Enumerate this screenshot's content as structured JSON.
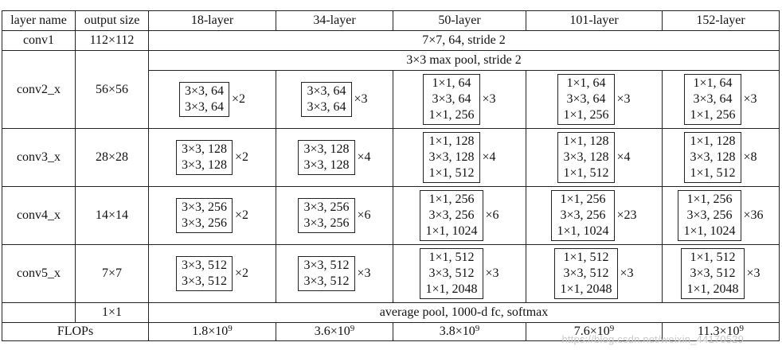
{
  "header": {
    "layer_name": "layer name",
    "output_size": "output size",
    "col18": "18-layer",
    "col34": "34-layer",
    "col50": "50-layer",
    "col101": "101-layer",
    "col152": "152-layer"
  },
  "conv1": {
    "name": "conv1",
    "size": "112×112",
    "desc": "7×7, 64, stride 2"
  },
  "pool": {
    "desc": "3×3 max pool, stride 2"
  },
  "conv2": {
    "name": "conv2_x",
    "size": "56×56",
    "l18": {
      "lines": [
        "3×3, 64",
        "3×3, 64"
      ],
      "mult": "×2"
    },
    "l34": {
      "lines": [
        "3×3, 64",
        "3×3, 64"
      ],
      "mult": "×3"
    },
    "l50": {
      "lines": [
        "1×1, 64",
        "3×3, 64",
        "1×1, 256"
      ],
      "mult": "×3"
    },
    "l101": {
      "lines": [
        "1×1, 64",
        "3×3, 64",
        "1×1, 256"
      ],
      "mult": "×3"
    },
    "l152": {
      "lines": [
        "1×1, 64",
        "3×3, 64",
        "1×1, 256"
      ],
      "mult": "×3"
    }
  },
  "conv3": {
    "name": "conv3_x",
    "size": "28×28",
    "l18": {
      "lines": [
        "3×3, 128",
        "3×3, 128"
      ],
      "mult": "×2"
    },
    "l34": {
      "lines": [
        "3×3, 128",
        "3×3, 128"
      ],
      "mult": "×4"
    },
    "l50": {
      "lines": [
        "1×1, 128",
        "3×3, 128",
        "1×1, 512"
      ],
      "mult": "×4"
    },
    "l101": {
      "lines": [
        "1×1, 128",
        "3×3, 128",
        "1×1, 512"
      ],
      "mult": "×4"
    },
    "l152": {
      "lines": [
        "1×1, 128",
        "3×3, 128",
        "1×1, 512"
      ],
      "mult": "×8"
    }
  },
  "conv4": {
    "name": "conv4_x",
    "size": "14×14",
    "l18": {
      "lines": [
        "3×3, 256",
        "3×3, 256"
      ],
      "mult": "×2"
    },
    "l34": {
      "lines": [
        "3×3, 256",
        "3×3, 256"
      ],
      "mult": "×6"
    },
    "l50": {
      "lines": [
        "1×1, 256",
        "3×3, 256",
        "1×1, 1024"
      ],
      "mult": "×6"
    },
    "l101": {
      "lines": [
        "1×1, 256",
        "3×3, 256",
        "1×1, 1024"
      ],
      "mult": "×23"
    },
    "l152": {
      "lines": [
        "1×1, 256",
        "3×3, 256",
        "1×1, 1024"
      ],
      "mult": "×36"
    }
  },
  "conv5": {
    "name": "conv5_x",
    "size": "7×7",
    "l18": {
      "lines": [
        "3×3, 512",
        "3×3, 512"
      ],
      "mult": "×2"
    },
    "l34": {
      "lines": [
        "3×3, 512",
        "3×3, 512"
      ],
      "mult": "×3"
    },
    "l50": {
      "lines": [
        "1×1, 512",
        "3×3, 512",
        "1×1, 2048"
      ],
      "mult": "×3"
    },
    "l101": {
      "lines": [
        "1×1, 512",
        "3×3, 512",
        "1×1, 2048"
      ],
      "mult": "×3"
    },
    "l152": {
      "lines": [
        "1×1, 512",
        "3×3, 512",
        "1×1, 2048"
      ],
      "mult": "×3"
    }
  },
  "avg": {
    "size": "1×1",
    "desc": "average pool, 1000-d fc, softmax"
  },
  "flops": {
    "label": "FLOPs",
    "l18": {
      "base": "1.8×10",
      "exp": "9"
    },
    "l34": {
      "base": "3.6×10",
      "exp": "9"
    },
    "l50": {
      "base": "3.8×10",
      "exp": "9"
    },
    "l101": {
      "base": "7.6×10",
      "exp": "9"
    },
    "l152": {
      "base": "11.3×10",
      "exp": "9"
    }
  },
  "watermark": "https://blog.csdn.net/weixin_44170529"
}
